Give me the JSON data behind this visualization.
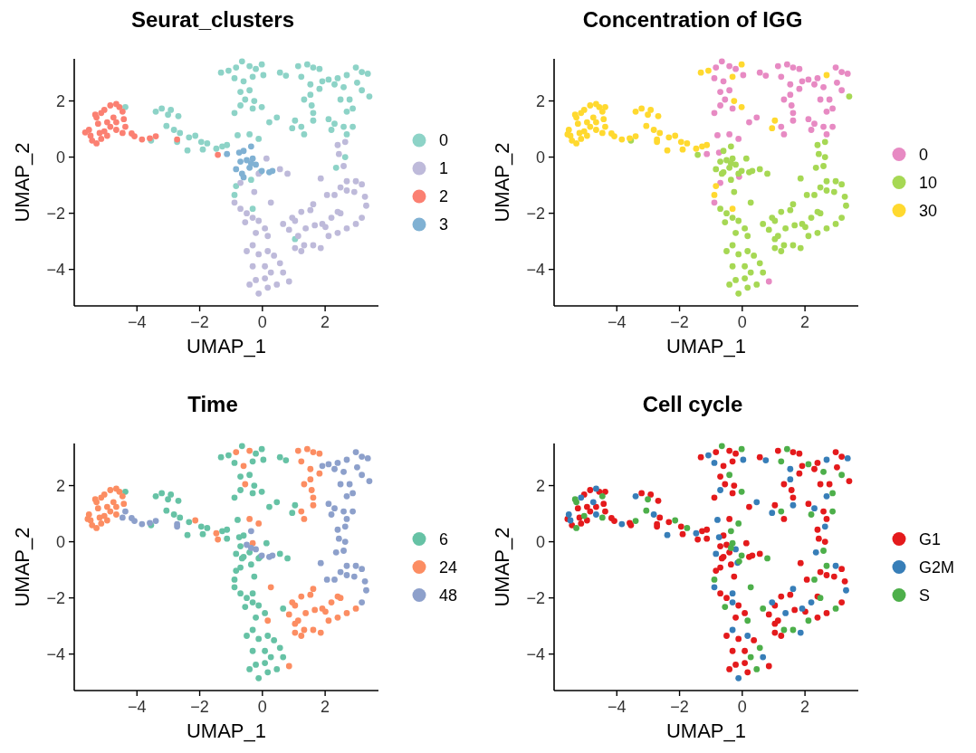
{
  "chart_data": [
    {
      "type": "scatter",
      "title": "Seurat_clusters",
      "xlabel": "UMAP_1",
      "ylabel": "UMAP_2",
      "xlim": [
        -6,
        3.7
      ],
      "ylim": [
        -5.3,
        3.5
      ],
      "xticks": [
        -4,
        -2,
        0,
        2
      ],
      "yticks": [
        -4,
        -2,
        0,
        2
      ],
      "legend": "right",
      "marker": "circle",
      "series": [
        {
          "name": "0",
          "color": "#8dd3c7",
          "x": [
            -1.32,
            -1.08,
            -0.84,
            -0.65,
            -0.41,
            -0.21,
            -0.02,
            -0.89,
            -0.6,
            -0.31,
            0.03,
            -0.7,
            -0.41,
            -0.55,
            -0.26,
            -0.02,
            -0.7,
            -0.89,
            0.22,
            0.46,
            -0.31,
            0.56,
            0.75,
            1.14,
            1.43,
            1.62,
            1.82,
            1.24,
            1.53,
            1.33,
            1.57,
            1.53,
            1.91,
            2.11,
            2.3,
            2.4,
            2.59,
            2.69,
            2.98,
            3.17,
            3.36,
            3.02,
            3.17,
            3.41,
            2.78,
            2.88,
            2.69,
            2.49,
            2.11,
            2.3,
            2.59,
            2.88,
            2.69,
            1.04,
            1.24,
            1.62,
            1.62,
            1.33,
            0.95,
            1.82,
            2.2,
            -4.37,
            -3.4,
            -3.21,
            -3.01,
            -2.92,
            -2.68,
            -3.06,
            -2.82,
            -2.63,
            -2.72,
            -2.39,
            -2.34,
            -2.14,
            -1.9,
            -1.95,
            -1.76,
            -1.47,
            -1.28,
            -1.13,
            -0.79,
            -0.41,
            -0.12,
            -3.55,
            -0.84,
            -0.89,
            -0.31,
            -0.36,
            1.04,
            2.35,
            2.64,
            -0.07
          ],
          "values": [
            3.01,
            3.08,
            3.19,
            3.41,
            3.24,
            3.14,
            3.3,
            2.81,
            2.7,
            2.86,
            2.92,
            2.32,
            2.38,
            2.05,
            2.0,
            1.78,
            1.84,
            1.57,
            1.24,
            1.41,
            1.73,
            3.01,
            2.9,
            3.24,
            3.3,
            3.19,
            3.14,
            2.86,
            2.59,
            2.05,
            1.84,
            2.22,
            2.7,
            2.76,
            2.59,
            2.81,
            2.49,
            2.92,
            3.19,
            3.03,
            2.97,
            2.65,
            2.38,
            2.16,
            2.05,
            1.73,
            1.62,
            2.05,
            1.35,
            1.19,
            1.08,
            1.08,
            0.81,
            1.3,
            1.08,
            1.3,
            1.57,
            0.81,
            1.03,
            2.43,
            0.97,
            1.78,
            1.62,
            1.73,
            1.51,
            1.68,
            1.46,
            1.11,
            0.97,
            0.86,
            0.54,
            0.24,
            0.7,
            0.76,
            0.27,
            0.54,
            0.49,
            0.3,
            0.38,
            0.43,
            0.78,
            0.81,
            0.65,
            0.59,
            -1.03,
            -1.35,
            -1.84,
            -0.81,
            -2.92,
            -0.38,
            0,
            -0.54
          ]
        },
        {
          "name": "1",
          "color": "#bebada",
          "x": [
            0.13,
            -0.12,
            0.56,
            0.8,
            -0.7,
            -0.26,
            0.27,
            -0.89,
            -0.7,
            -0.5,
            -0.31,
            -0.12,
            -0.55,
            -0.21,
            0.08,
            0.17,
            -0.31,
            -0.5,
            -0.12,
            0.17,
            0.37,
            0.56,
            -0.31,
            0.08,
            0.27,
            0.66,
            0.85,
            -0.41,
            -0.12,
            0.17,
            0.46,
            0.08,
            -0.21,
            0.66,
            0.95,
            1.24,
            1.53,
            1.62,
            2.06,
            2.3,
            2.4,
            2.49,
            2.69,
            2.98,
            3.17,
            3.27,
            3.31,
            3.17,
            2.98,
            2.69,
            2.4,
            2.11,
            1.91,
            2.01,
            1.67,
            1.38,
            1.14,
            1.33,
            1.04,
            1.24,
            1.62,
            1.86,
            1.86,
            2.4,
            2.64,
            2.44,
            2.59,
            2.69,
            2.93,
            2.49,
            2.2,
            1.04,
            0.85
          ],
          "values": [
            -0.05,
            -0.59,
            -0.43,
            -0.59,
            -0.92,
            -1.24,
            -1.62,
            -1.62,
            -1.84,
            -2.0,
            -2.16,
            -2.27,
            -2.32,
            -2.7,
            -2.54,
            -2.81,
            -3.14,
            -3.35,
            -3.46,
            -3.35,
            -3.51,
            -3.78,
            -3.89,
            -3.89,
            -4.11,
            -4.11,
            -4.43,
            -4.54,
            -4.86,
            -4.65,
            -4.54,
            -4.32,
            -4.38,
            -2.38,
            -2.16,
            -1.95,
            -1.89,
            -1.68,
            -1.35,
            -1.35,
            -1.95,
            -1.08,
            -0.86,
            -0.86,
            -0.97,
            -1.41,
            -1.73,
            -2.16,
            -2.38,
            -2.54,
            -2.7,
            -2.81,
            -2.38,
            -2.49,
            -2.43,
            -2.54,
            -2.81,
            -3.14,
            -3.24,
            -3.35,
            -3.14,
            -3.24,
            -0.76,
            0.43,
            0.54,
            0.11,
            -0.32,
            -1.19,
            -1.24,
            -2.0,
            -2.16,
            -2.27,
            -2.59
          ]
        },
        {
          "name": "2",
          "color": "#fb8072",
          "x": [
            -5.65,
            -5.53,
            -5.43,
            -5.29,
            -5.14,
            -5.24,
            -5.29,
            -5.14,
            -5.04,
            -4.85,
            -4.66,
            -4.56,
            -4.46,
            -4.42,
            -4.37,
            -4.46,
            -4.66,
            -4.85,
            -4.95,
            -4.75,
            -4.66,
            -5.04,
            -4.95,
            -4.17,
            -5.33,
            -5.48,
            -5.19,
            -4.08,
            -3.84,
            -3.59,
            -3.4,
            -2.72,
            -1.42
          ],
          "values": [
            0.88,
            0.97,
            0.59,
            0.49,
            0.65,
            1.19,
            1.41,
            1.57,
            1.68,
            1.84,
            1.89,
            1.78,
            1.62,
            1.35,
            1.08,
            0.86,
            0.97,
            1.08,
            1.24,
            1.41,
            1.24,
            0.92,
            0.76,
            0.84,
            1.51,
            0.76,
            0.86,
            0.74,
            0.63,
            0.67,
            0.74,
            0.63,
            0.08
          ]
        },
        {
          "name": "3",
          "color": "#80b1d3",
          "x": [
            -1.13,
            -0.74,
            -0.6,
            -0.36,
            -0.7,
            -0.5,
            -0.31,
            -0.21,
            -0.41,
            -0.6,
            -0.84,
            -0.65,
            -0.02,
            0.22,
            0.32,
            -0.36
          ],
          "values": [
            0.11,
            0.16,
            0.22,
            0.38,
            -0.16,
            -0.11,
            -0.05,
            -0.27,
            -0.38,
            -0.72,
            -0.43,
            -0.59,
            -0.49,
            -0.54,
            -0.49,
            -0.22
          ]
        }
      ]
    },
    {
      "type": "scatter",
      "title": "Concentration of IGG",
      "xlabel": "UMAP_1",
      "ylabel": "UMAP_2",
      "xlim": [
        -6,
        3.7
      ],
      "ylim": [
        -5.3,
        3.5
      ],
      "xticks": [
        -4,
        -2,
        0,
        2
      ],
      "yticks": [
        -4,
        -2,
        0,
        2
      ],
      "legend": "right",
      "marker": "circle",
      "series": [
        {
          "name": "0",
          "color": "#e78ac3",
          "x": [
            -0.84,
            -0.65,
            -0.41,
            -0.21,
            -0.89,
            -0.6,
            0.03,
            -0.7,
            -0.41,
            -0.55,
            -0.7,
            -0.89,
            0.22,
            0.46,
            -0.31,
            0.56,
            0.75,
            1.14,
            1.43,
            1.62,
            1.82,
            1.24,
            1.53,
            1.33,
            1.57,
            1.53,
            1.91,
            2.11,
            2.3,
            2.4,
            2.59,
            2.98,
            3.17,
            3.36,
            3.02,
            3.17,
            2.78,
            2.88,
            2.69,
            2.49,
            2.11,
            2.3,
            2.59,
            2.88,
            2.69,
            1.24,
            1.62,
            1.62,
            1.33,
            1.82,
            2.2,
            -0.79,
            -0.41,
            -0.12,
            -0.1,
            -1.13,
            -0.74,
            -0.7,
            -0.89,
            0.85
          ],
          "values": [
            3.19,
            3.41,
            3.24,
            3.14,
            2.81,
            2.7,
            2.92,
            2.32,
            2.38,
            2.05,
            1.84,
            1.57,
            1.24,
            1.41,
            1.73,
            3.01,
            2.9,
            3.24,
            3.3,
            3.19,
            3.14,
            2.86,
            2.59,
            2.05,
            1.84,
            2.22,
            2.7,
            2.76,
            2.59,
            2.81,
            2.49,
            3.19,
            3.03,
            2.97,
            2.65,
            2.38,
            2.05,
            1.73,
            1.62,
            2.05,
            1.35,
            1.19,
            1.08,
            1.08,
            0.81,
            1.08,
            1.3,
            1.57,
            0.81,
            2.43,
            0.97,
            0.78,
            0.81,
            0.65,
            -0.7,
            0.11,
            0.16,
            -0.92,
            -1.62,
            -4.43
          ]
        },
        {
          "name": "10",
          "color": "#a6d854",
          "x": [
            3.41,
            -3.55,
            -1.42,
            -0.36,
            1.04,
            2.35,
            2.64,
            -0.6,
            -0.36,
            -0.7,
            -0.5,
            -0.31,
            -0.21,
            -0.41,
            -0.6,
            -0.84,
            -0.65,
            -0.02,
            0.22,
            0.32,
            -0.36,
            0.13,
            -0.12,
            0.56,
            0.8,
            -0.26,
            0.27,
            -0.7,
            -0.5,
            -0.31,
            -0.12,
            -0.55,
            -0.21,
            0.08,
            0.17,
            -0.31,
            -0.5,
            -0.12,
            0.17,
            0.37,
            0.56,
            -0.31,
            0.08,
            0.27,
            0.66,
            -0.41,
            -0.12,
            0.17,
            0.46,
            0.08,
            -0.21,
            0.66,
            0.95,
            1.24,
            1.53,
            1.62,
            2.06,
            2.3,
            2.4,
            2.49,
            2.69,
            2.98,
            3.17,
            3.27,
            3.31,
            3.17,
            2.98,
            2.69,
            2.4,
            2.11,
            1.91,
            2.01,
            1.67,
            1.38,
            1.14,
            1.33,
            1.04,
            1.24,
            1.62,
            1.86,
            1.86,
            2.4,
            2.64,
            2.44,
            2.59,
            2.69,
            2.93,
            2.49,
            2.2,
            1.04,
            0.85
          ],
          "values": [
            2.16,
            0.59,
            0.08,
            -0.81,
            -2.92,
            -0.38,
            0,
            0.22,
            0.38,
            -0.16,
            -0.11,
            -0.05,
            -0.27,
            -0.38,
            -0.54,
            -0.43,
            -0.59,
            -0.49,
            -0.54,
            -0.49,
            -0.22,
            -0.05,
            -0.59,
            -0.43,
            -0.59,
            -1.24,
            -1.62,
            -1.84,
            -2.0,
            -2.16,
            -2.27,
            -2.32,
            -2.7,
            -2.54,
            -2.81,
            -3.14,
            -3.35,
            -3.46,
            -3.35,
            -3.51,
            -3.78,
            -3.89,
            -3.89,
            -4.11,
            -4.11,
            -4.54,
            -4.86,
            -4.65,
            -4.54,
            -4.32,
            -4.38,
            -2.38,
            -2.16,
            -1.95,
            -1.89,
            -1.68,
            -1.35,
            -1.35,
            -1.95,
            -1.08,
            -0.86,
            -0.86,
            -0.97,
            -1.41,
            -1.73,
            -2.16,
            -2.38,
            -2.54,
            -2.7,
            -2.81,
            -2.38,
            -2.49,
            -2.43,
            -2.54,
            -2.81,
            -3.14,
            -3.24,
            -3.35,
            -3.14,
            -3.24,
            -0.76,
            0.43,
            0.54,
            0.11,
            -0.32,
            -1.19,
            -1.24,
            -2.0,
            -2.16,
            -2.27,
            -2.59
          ]
        },
        {
          "name": "30",
          "color": "#ffd92f",
          "x": [
            -5.57,
            -5.53,
            -5.43,
            -5.29,
            -5.14,
            -5.24,
            -5.29,
            -5.14,
            -5.04,
            -4.85,
            -4.66,
            -4.56,
            -4.46,
            -4.42,
            -4.37,
            -4.46,
            -4.66,
            -4.85,
            -4.95,
            -4.75,
            -4.66,
            -5.04,
            -4.95,
            -4.17,
            -5.33,
            -5.48,
            -5.19,
            -4.08,
            -3.84,
            -3.59,
            -3.4,
            -2.72,
            -4.37,
            -3.4,
            -3.21,
            -3.01,
            -2.92,
            -2.68,
            -3.06,
            -2.82,
            -2.63,
            -2.72,
            -2.39,
            -2.34,
            -2.14,
            -1.9,
            -1.95,
            -1.76,
            -1.47,
            -1.28,
            -1.13,
            -0.84,
            -0.89,
            -0.31,
            -1.32,
            -1.08,
            -0.02,
            -0.31,
            -0.26,
            -0.02,
            2.69,
            1.04,
            0.95
          ],
          "values": [
            0.81,
            0.97,
            0.59,
            0.49,
            0.65,
            1.19,
            1.41,
            1.57,
            1.68,
            1.84,
            1.89,
            1.78,
            1.62,
            1.35,
            1.08,
            0.86,
            0.97,
            1.08,
            1.24,
            1.41,
            1.24,
            0.92,
            0.76,
            0.84,
            1.51,
            0.76,
            0.86,
            0.74,
            0.63,
            0.67,
            0.74,
            0.63,
            1.78,
            1.62,
            1.73,
            1.51,
            1.68,
            1.46,
            1.11,
            0.97,
            0.86,
            0.54,
            0.24,
            0.7,
            0.76,
            0.27,
            0.54,
            0.49,
            0.3,
            0.38,
            0.43,
            -1.03,
            -1.35,
            -1.84,
            3.01,
            3.08,
            3.3,
            2.86,
            2.0,
            1.78,
            2.92,
            1.3,
            1.03
          ]
        }
      ]
    },
    {
      "type": "scatter",
      "title": "Time",
      "xlabel": "UMAP_1",
      "ylabel": "UMAP_2",
      "xlim": [
        -6,
        3.7
      ],
      "ylim": [
        -5.3,
        3.5
      ],
      "xticks": [
        -4,
        -2,
        0,
        2
      ],
      "yticks": [
        -4,
        -2,
        0,
        2
      ],
      "legend": "right",
      "marker": "circle",
      "series": [
        {
          "name": "6",
          "color": "#66c2a5",
          "x": [
            -1.32,
            -1.08,
            -0.65,
            -0.21,
            -0.02,
            -0.89,
            -0.31,
            0.03,
            -0.7,
            -0.41,
            -0.26,
            -0.02,
            -0.7,
            -0.89,
            0.22,
            0.46,
            -0.31,
            0.56,
            0.75,
            1.04,
            0.95,
            -4.37,
            -3.4,
            -3.21,
            -3.01,
            -2.92,
            -2.68,
            -3.06,
            -2.82,
            -2.63,
            -2.39,
            -2.34,
            -1.9,
            -1.95,
            -1.76,
            -1.28,
            -1.13,
            -0.79,
            -3.55,
            -0.84,
            -0.89,
            -0.31,
            -0.36,
            -0.07,
            -1.13,
            -0.74,
            -0.6,
            -0.7,
            -0.41,
            -0.6,
            -0.84,
            -0.65,
            0.13,
            -0.12,
            0.56,
            0.8,
            -0.7,
            -0.26,
            -0.89,
            -0.7,
            -0.5,
            -0.31,
            -0.12,
            -0.55,
            -0.21,
            0.08,
            -0.31,
            -0.5,
            -0.12,
            0.17,
            0.37,
            0.56,
            -0.31,
            0.08,
            0.27,
            0.66,
            -0.41,
            -0.12,
            0.17,
            0.46,
            0.08,
            -0.21,
            0.66
          ],
          "values": [
            3.01,
            3.08,
            3.41,
            3.14,
            3.3,
            2.81,
            2.86,
            2.92,
            2.32,
            2.38,
            2.0,
            1.78,
            1.84,
            1.57,
            1.24,
            1.41,
            1.73,
            3.01,
            2.9,
            1.3,
            1.03,
            1.78,
            1.62,
            1.73,
            1.51,
            1.68,
            1.46,
            1.11,
            0.97,
            0.86,
            0.24,
            0.7,
            0.27,
            0.54,
            0.49,
            0.38,
            0.43,
            0.78,
            0.59,
            -1.03,
            -1.35,
            -1.84,
            -0.81,
            -0.54,
            0.11,
            0.16,
            0.22,
            -0.16,
            -0.38,
            -0.54,
            -0.43,
            -0.59,
            -0.05,
            -0.59,
            -0.43,
            -0.59,
            -0.92,
            -1.24,
            -1.62,
            -1.84,
            -2.0,
            -2.16,
            -2.27,
            -2.32,
            -2.7,
            -2.54,
            -3.14,
            -3.35,
            -3.46,
            -3.35,
            -3.51,
            -3.78,
            -3.89,
            -3.89,
            -4.11,
            -4.11,
            -4.54,
            -4.86,
            -4.65,
            -4.54,
            -4.32,
            -4.38,
            -2.38
          ]
        },
        {
          "name": "24",
          "color": "#fc8d62",
          "x": [
            -5.57,
            -5.53,
            -5.43,
            -5.29,
            -5.14,
            -5.24,
            -5.29,
            -5.14,
            -5.04,
            -4.85,
            -4.66,
            -4.56,
            -4.46,
            -4.42,
            -4.66,
            -4.85,
            -4.95,
            -4.75,
            -4.66,
            -5.04,
            -4.95,
            -5.33,
            -5.48,
            -5.19,
            -1.42,
            -0.84,
            -0.41,
            -0.6,
            -0.55,
            1.14,
            1.43,
            1.62,
            1.82,
            1.24,
            1.53,
            1.33,
            1.57,
            1.53,
            1.24,
            1.62,
            1.62,
            1.33,
            1.82,
            -2.14,
            -1.47,
            -0.41,
            -0.12,
            1.04,
            -0.31,
            0.27,
            0.17,
            0.85,
            0.95,
            1.24,
            1.53,
            1.62,
            2.4,
            2.98,
            2.69,
            2.4,
            2.11,
            1.91,
            2.01,
            1.67,
            1.38,
            1.14,
            1.33,
            1.04,
            1.24,
            1.62,
            1.86,
            2.49,
            2.2,
            1.04,
            0.85
          ],
          "values": [
            0.81,
            0.97,
            0.59,
            0.49,
            0.65,
            1.19,
            1.41,
            1.57,
            1.68,
            1.84,
            1.89,
            1.78,
            1.62,
            1.35,
            0.97,
            1.08,
            1.24,
            1.41,
            1.24,
            0.92,
            0.76,
            1.51,
            0.76,
            0.86,
            0.08,
            3.19,
            3.24,
            2.7,
            2.05,
            3.24,
            3.3,
            3.19,
            3.14,
            2.86,
            2.59,
            2.05,
            1.84,
            2.22,
            1.08,
            1.3,
            1.57,
            0.81,
            2.43,
            0.76,
            0.3,
            0.81,
            0.65,
            -2.92,
            -0.05,
            -1.62,
            -2.81,
            -4.43,
            -2.16,
            -1.95,
            -1.89,
            -1.68,
            -1.95,
            -2.38,
            -2.54,
            -2.7,
            -2.81,
            -2.38,
            -2.49,
            -2.43,
            -2.54,
            -2.81,
            -3.14,
            -3.24,
            -3.35,
            -3.14,
            -3.24,
            -2.0,
            -2.16,
            -2.27,
            -2.59
          ]
        },
        {
          "name": "48",
          "color": "#8da0cb",
          "x": [
            -4.37,
            -4.46,
            -4.17,
            -4.08,
            -3.84,
            -3.59,
            -3.4,
            -2.72,
            1.91,
            2.11,
            2.3,
            2.4,
            2.59,
            2.69,
            2.98,
            3.17,
            3.36,
            3.02,
            3.17,
            3.41,
            2.78,
            2.88,
            2.69,
            2.49,
            2.11,
            2.3,
            2.59,
            2.88,
            2.69,
            2.2,
            -2.72,
            2.35,
            2.64,
            -0.36,
            -0.5,
            -0.21,
            -0.02,
            0.22,
            0.32,
            -0.36,
            2.06,
            2.3,
            2.49,
            2.69,
            2.98,
            3.17,
            3.27,
            3.31,
            3.17,
            1.86,
            2.4,
            2.64,
            2.44,
            2.59,
            2.69,
            2.93
          ],
          "values": [
            1.08,
            0.86,
            0.84,
            0.74,
            0.63,
            0.67,
            0.74,
            0.63,
            2.7,
            2.76,
            2.59,
            2.81,
            2.49,
            2.92,
            3.19,
            3.03,
            2.97,
            2.65,
            2.38,
            2.16,
            2.05,
            1.73,
            1.62,
            2.05,
            1.35,
            1.19,
            1.08,
            1.08,
            0.81,
            0.97,
            0.54,
            -0.38,
            0,
            0.38,
            -0.11,
            -0.27,
            -0.49,
            -0.54,
            -0.49,
            -0.22,
            -1.35,
            -1.35,
            -1.08,
            -0.86,
            -0.86,
            -0.97,
            -1.41,
            -1.73,
            -2.16,
            -0.76,
            0.43,
            0.54,
            0.11,
            -0.32,
            -1.19,
            -1.24
          ]
        }
      ]
    },
    {
      "type": "scatter",
      "title": "Cell cycle",
      "xlabel": "UMAP_1",
      "ylabel": "UMAP_2",
      "xlim": [
        -6,
        3.7
      ],
      "ylim": [
        -5.3,
        3.5
      ],
      "xticks": [
        -4,
        -2,
        0,
        2
      ],
      "yticks": [
        -4,
        -2,
        0,
        2
      ],
      "legend": "right",
      "marker": "circle",
      "series": [
        {
          "name": "G1",
          "color": "#e41a1c",
          "x": [
            -1.32,
            -0.84,
            -0.41,
            -0.21,
            -0.6,
            -0.31,
            -0.7,
            -0.55,
            -0.26,
            -0.89,
            0.22,
            -0.31,
            0.56,
            1.14,
            1.62,
            1.82,
            1.33,
            1.57,
            1.91,
            2.3,
            2.4,
            2.98,
            3.17,
            3.02,
            3.41,
            2.78,
            2.49,
            2.11,
            2.59,
            2.69,
            1.04,
            1.62,
            1.33,
            1.82,
            -4.37,
            -3.21,
            -2.92,
            -2.68,
            -2.63,
            -2.72,
            -2.34,
            -1.9,
            -1.95,
            -1.28,
            -1.13,
            -0.41,
            -3.55,
            -0.84,
            -0.36,
            1.04,
            2.64,
            -5.57,
            -5.43,
            -5.14,
            -5.24,
            -5.04,
            -4.85,
            -4.56,
            -4.42,
            -4.37,
            -4.85,
            -4.95,
            -4.66,
            -4.95,
            -4.17,
            -5.19,
            -4.08,
            -3.59,
            -2.72,
            -1.42,
            -1.13,
            -0.6,
            -0.7,
            -0.5,
            -0.41,
            -0.6,
            -0.65,
            0.22,
            0.32,
            0.13,
            0.56,
            -0.7,
            -0.26,
            -0.7,
            -0.5,
            -0.12,
            -0.21,
            0.08,
            -0.5,
            -0.12,
            0.37,
            -0.31,
            0.08,
            0.85,
            -0.41,
            0.17,
            0.08,
            -0.21,
            1.24,
            1.53,
            2.06,
            2.4,
            2.49,
            3.17,
            3.27,
            3.17,
            2.69,
            2.4,
            2.01,
            1.67,
            1.14,
            1.04,
            1.24,
            1.86,
            2.4,
            2.44,
            2.69,
            2.93,
            1.04,
            0.85
          ],
          "values": [
            3.01,
            3.19,
            3.24,
            3.14,
            2.7,
            2.86,
            2.32,
            2.05,
            2.0,
            1.57,
            1.24,
            1.73,
            3.01,
            3.24,
            3.19,
            3.14,
            2.05,
            1.84,
            2.7,
            2.59,
            2.81,
            3.19,
            3.03,
            2.65,
            2.16,
            2.05,
            2.05,
            1.35,
            1.08,
            0.81,
            1.3,
            1.57,
            0.81,
            2.43,
            1.78,
            1.73,
            1.68,
            1.46,
            0.86,
            0.54,
            0.7,
            0.27,
            0.54,
            0.38,
            0.43,
            0.81,
            0.59,
            -1.03,
            -0.81,
            -2.92,
            0,
            0.81,
            0.59,
            0.65,
            1.19,
            1.68,
            1.84,
            1.78,
            1.35,
            1.08,
            1.08,
            1.24,
            1.24,
            0.76,
            0.84,
            0.86,
            0.74,
            0.67,
            0.63,
            0.08,
            0.11,
            0.22,
            -0.16,
            -0.11,
            -0.38,
            -0.54,
            -0.59,
            -0.54,
            -0.49,
            -0.05,
            -0.43,
            -0.92,
            -1.24,
            -1.84,
            -2.0,
            -2.27,
            -2.7,
            -2.54,
            -3.35,
            -3.46,
            -3.51,
            -3.89,
            -3.89,
            -4.43,
            -4.54,
            -4.65,
            -4.32,
            -4.38,
            -1.95,
            -1.89,
            -1.35,
            -1.95,
            -1.08,
            -0.97,
            -1.41,
            -2.16,
            -2.54,
            -2.7,
            -2.49,
            -2.43,
            -2.81,
            -3.24,
            -3.35,
            -0.76,
            0.43,
            0.11,
            -1.19,
            -1.24,
            -2.27,
            -2.59
          ]
        },
        {
          "name": "G2M",
          "color": "#377eb8",
          "x": [
            -1.08,
            -0.89,
            0.03,
            -0.7,
            0.46,
            0.75,
            1.53,
            1.53,
            2.69,
            3.36,
            2.69,
            2.3,
            1.62,
            0.95,
            -3.4,
            -2.82,
            -2.39,
            -1.47,
            -0.79,
            -0.31,
            2.35,
            -5.53,
            -5.14,
            -4.66,
            -4.66,
            -4.75,
            -5.48,
            -3.84,
            -0.74,
            -0.21,
            -0.84,
            -0.15,
            -0.89,
            -0.31,
            -0.31,
            0.17,
            0.66,
            -0.12,
            0.95,
            1.62,
            2.98,
            3.31,
            1.91,
            1.38,
            1.86,
            2.64,
            2.2
          ],
          "values": [
            3.08,
            2.81,
            2.92,
            1.84,
            1.41,
            2.9,
            2.59,
            2.22,
            2.92,
            2.97,
            1.62,
            1.19,
            1.3,
            1.03,
            1.62,
            0.97,
            0.24,
            0.3,
            0.78,
            -1.84,
            -0.38,
            0.97,
            1.57,
            1.89,
            0.97,
            1.41,
            0.76,
            0.63,
            0.16,
            -0.27,
            -0.43,
            -0.75,
            -1.62,
            -2.16,
            -3.14,
            -3.35,
            -4.11,
            -4.86,
            -2.16,
            -1.68,
            -0.86,
            -1.73,
            -2.38,
            -2.54,
            -3.24,
            0.54,
            -2.16
          ]
        },
        {
          "name": "S",
          "color": "#4daf4a",
          "x": [
            -0.65,
            -0.02,
            -0.41,
            -0.02,
            1.43,
            1.24,
            2.11,
            2.59,
            3.17,
            2.88,
            2.88,
            1.24,
            2.2,
            -3.01,
            -3.06,
            -2.14,
            -1.76,
            -0.12,
            -0.89,
            -0.1,
            -5.29,
            -5.29,
            -4.46,
            -4.46,
            -5.04,
            -5.33,
            -3.4,
            -0.36,
            -0.31,
            -0.02,
            -0.36,
            0.8,
            0.27,
            -0.55,
            0.17,
            0.56,
            0.27,
            0.46,
            0.66,
            2.3,
            2.69,
            2.98,
            2.11,
            1.33,
            1.62,
            2.59,
            2.49
          ],
          "values": [
            3.41,
            3.3,
            2.38,
            1.78,
            3.3,
            2.86,
            2.76,
            2.49,
            2.38,
            1.73,
            1.08,
            1.08,
            0.97,
            1.51,
            1.11,
            0.76,
            0.49,
            0.65,
            -1.35,
            -0.7,
            0.49,
            1.41,
            1.62,
            0.86,
            0.92,
            1.51,
            0.74,
            0.38,
            -0.05,
            -0.49,
            -0.22,
            -0.59,
            -1.62,
            -2.32,
            -2.81,
            -3.78,
            -4.11,
            -4.54,
            -2.38,
            -1.35,
            -0.86,
            -2.38,
            -2.81,
            -3.14,
            -3.14,
            -0.32,
            -2.0
          ]
        }
      ]
    }
  ]
}
